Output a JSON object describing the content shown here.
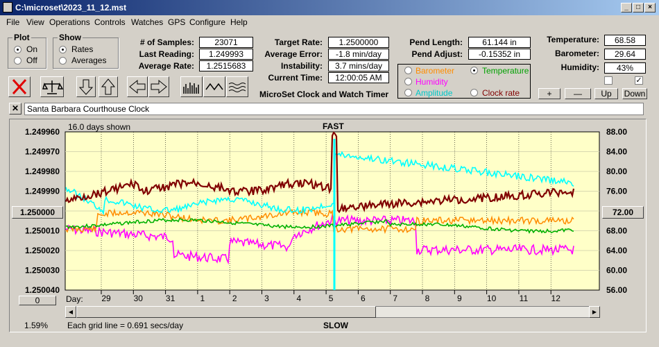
{
  "title": "C:\\microset\\2023_11_12.mst",
  "menu": [
    "File",
    "View",
    "Operations",
    "Controls",
    "Watches",
    "GPS",
    "Configure",
    "Help"
  ],
  "plot": {
    "title": "Plot",
    "on": "On",
    "off": "Off"
  },
  "show": {
    "title": "Show",
    "rates": "Rates",
    "averages": "Averages"
  },
  "stats1": {
    "samples_label": "# of Samples:",
    "samples": "23071",
    "last_label": "Last Reading:",
    "last": "1.249993",
    "avg_label": "Average Rate:",
    "avg": "1.2515683"
  },
  "stats2": {
    "target_label": "Target Rate:",
    "target": "1.2500000",
    "error_label": "Average Error:",
    "error": "-1.8 min/day",
    "instab_label": "Instability:",
    "instab": "3.7 mins/day",
    "time_label": "Current Time:",
    "time": "12:00:05 AM"
  },
  "app_name": "MicroSet Clock and Watch Timer",
  "pend": {
    "length_label": "Pend Length:",
    "length": "61.144 in",
    "adjust_label": "Pend Adjust:",
    "adjust": "-0.15352 in"
  },
  "options": {
    "barometer": "Barometer",
    "temperature": "Temperature",
    "humidity": "Humidity",
    "amplitude": "Amplitude",
    "clockrate": "Clock rate"
  },
  "env": {
    "temp_label": "Temperature:",
    "temp": "68.58",
    "baro_label": "Barometer:",
    "baro": "29.64",
    "hum_label": "Humidity:",
    "hum": "43%"
  },
  "buttons": {
    "plus": "+",
    "minus": "—",
    "up": "Up",
    "down": "Down"
  },
  "clock_name": "Santa Barbara Courthouse Clock",
  "chart": {
    "days_shown": "16.0 days shown",
    "fast": "FAST",
    "slow": "SLOW",
    "day_label": "Day:",
    "grid_note": "Each grid line = 0.691 secs/day",
    "percent": "1.59%",
    "center_left": "1.250000",
    "center_right": "72.00",
    "zero_btn": "0"
  },
  "chart_data": {
    "type": "line",
    "left_ticks": [
      "1.249960",
      "1.249970",
      "1.249980",
      "1.249990",
      "1.250000",
      "1.250010",
      "1.250020",
      "1.250030",
      "1.250040"
    ],
    "right_ticks": [
      "88.00",
      "84.00",
      "80.00",
      "76.00",
      "72.00",
      "68.00",
      "64.00",
      "60.00",
      "56.00"
    ],
    "days": [
      "29",
      "30",
      "31",
      "1",
      "2",
      "3",
      "4",
      "5",
      "6",
      "7",
      "8",
      "9",
      "10",
      "11",
      "12"
    ],
    "series": []
  },
  "colors": {
    "temperature": "#00ffff",
    "barometer": "#ff8c00",
    "humidity": "#ff00ff",
    "amplitude": "#00b000",
    "clockrate": "#800000",
    "plotbg": "#ffffc8"
  }
}
